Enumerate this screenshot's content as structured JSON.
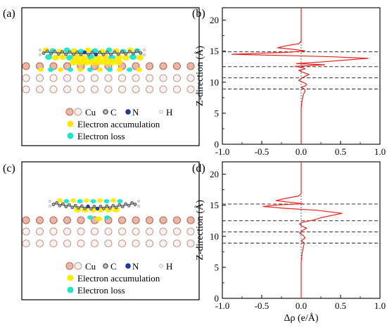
{
  "panels": {
    "a": {
      "label": "(a)"
    },
    "b": {
      "label": "(b)"
    },
    "c": {
      "label": "(c)"
    },
    "d": {
      "label": "(d)"
    }
  },
  "legend": {
    "cu": "Cu",
    "c": "C",
    "n": "N",
    "h": "H",
    "accumulation": "Electron accumulation",
    "loss": "Electron loss"
  },
  "colors": {
    "cu_atom": "#e8b7a6",
    "cu_edge": "#b9695a",
    "carbon": "#8a8a8a",
    "nitrogen": "#1f3fb7",
    "hydrogen": "#dcdcdc",
    "accumulation": "#ffea00",
    "loss": "#19e6c8",
    "curve": "#e8231e",
    "dashed": "#333333"
  },
  "chart_data": [
    {
      "type": "line",
      "panel": "(b)",
      "xlabel": "",
      "ylabel": "Z-direction (Å)",
      "xlim": [
        -1.0,
        1.0
      ],
      "ylim": [
        0,
        22
      ],
      "xticks": [
        -1.0,
        -0.5,
        0.0,
        0.5,
        1.0
      ],
      "yticks": [
        0,
        5,
        10,
        15,
        20
      ],
      "dashed_lines_y": [
        8.9,
        10.7,
        12.5,
        14.9
      ],
      "zero_line_x": 0.0,
      "series": [
        {
          "points": [
            [
              0.0,
              0.0
            ],
            [
              0.0,
              5.8
            ],
            [
              0.01,
              6.8
            ],
            [
              0.02,
              7.6
            ],
            [
              0.03,
              8.1
            ],
            [
              0.05,
              8.6
            ],
            [
              0.04,
              8.9
            ],
            [
              0.0,
              9.2
            ],
            [
              0.06,
              9.45
            ],
            [
              0.07,
              9.7
            ],
            [
              0.02,
              10.0
            ],
            [
              -0.03,
              10.3
            ],
            [
              0.0,
              10.6
            ],
            [
              0.05,
              10.95
            ],
            [
              0.1,
              11.25
            ],
            [
              0.02,
              11.6
            ],
            [
              -0.03,
              11.9
            ],
            [
              0.05,
              12.15
            ],
            [
              0.02,
              12.35
            ],
            [
              -0.08,
              12.55
            ],
            [
              0.3,
              12.8
            ],
            [
              -0.06,
              13.0
            ],
            [
              0.3,
              13.3
            ],
            [
              0.85,
              13.85
            ],
            [
              0.4,
              14.1
            ],
            [
              -0.08,
              14.25
            ],
            [
              -0.88,
              14.5
            ],
            [
              -0.55,
              14.65
            ],
            [
              -0.15,
              14.85
            ],
            [
              0.05,
              15.05
            ],
            [
              -0.1,
              15.3
            ],
            [
              -0.3,
              15.55
            ],
            [
              -0.2,
              15.85
            ],
            [
              -0.03,
              16.2
            ],
            [
              0.0,
              16.6
            ],
            [
              0.0,
              22.0
            ]
          ]
        }
      ]
    },
    {
      "type": "line",
      "panel": "(d)",
      "xlabel": "Δρ (e/Å)",
      "ylabel": "Z-direction (Å)",
      "xlim": [
        -1.0,
        1.0
      ],
      "ylim": [
        0,
        22
      ],
      "xticks": [
        -1.0,
        -0.5,
        0.0,
        0.5,
        1.0
      ],
      "yticks": [
        0,
        5,
        10,
        15,
        20
      ],
      "dashed_lines_y": [
        8.9,
        10.7,
        12.5,
        15.2
      ],
      "zero_line_x": 0.0,
      "series": [
        {
          "points": [
            [
              0.0,
              0.0
            ],
            [
              0.0,
              5.8
            ],
            [
              0.01,
              7.0
            ],
            [
              0.02,
              7.8
            ],
            [
              0.03,
              8.4
            ],
            [
              0.04,
              8.9
            ],
            [
              0.0,
              9.3
            ],
            [
              0.05,
              9.7
            ],
            [
              0.03,
              10.1
            ],
            [
              -0.02,
              10.5
            ],
            [
              0.01,
              10.9
            ],
            [
              0.07,
              11.3
            ],
            [
              0.0,
              11.7
            ],
            [
              -0.02,
              12.0
            ],
            [
              0.03,
              12.3
            ],
            [
              0.15,
              12.6
            ],
            [
              0.25,
              13.0
            ],
            [
              0.52,
              13.7
            ],
            [
              0.2,
              14.2
            ],
            [
              -0.2,
              14.5
            ],
            [
              -0.48,
              14.8
            ],
            [
              -0.3,
              15.05
            ],
            [
              0.02,
              15.25
            ],
            [
              -0.15,
              15.5
            ],
            [
              -0.32,
              15.75
            ],
            [
              -0.2,
              16.1
            ],
            [
              -0.03,
              16.5
            ],
            [
              0.0,
              16.9
            ],
            [
              0.0,
              22.0
            ]
          ]
        }
      ]
    }
  ]
}
